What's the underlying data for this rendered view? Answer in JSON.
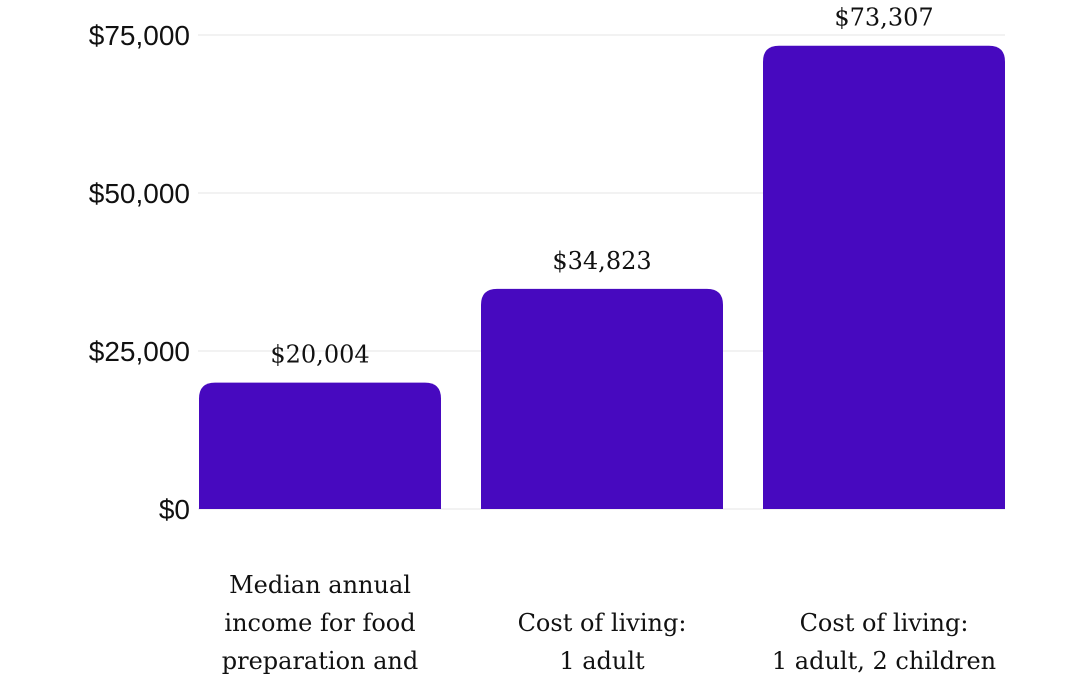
{
  "chart_data": {
    "type": "bar",
    "title": "",
    "xlabel": "",
    "ylabel": "",
    "ylim": [
      0,
      75000
    ],
    "yticks": [
      {
        "value": 0,
        "label": "$0"
      },
      {
        "value": 25000,
        "label": "$25,000"
      },
      {
        "value": 50000,
        "label": "$50,000"
      },
      {
        "value": 75000,
        "label": "$75,000"
      }
    ],
    "grid": true,
    "legend": "none",
    "bar_color": "#4709bf",
    "categories": [
      [
        "Median annual",
        "income for food",
        "preparation and"
      ],
      [
        "Cost of living:",
        "1 adult"
      ],
      [
        "Cost of living:",
        "1 adult, 2 children"
      ]
    ],
    "values": [
      20004,
      34823,
      73307
    ],
    "value_labels": [
      "$20,004",
      "$34,823",
      "$73,307"
    ]
  }
}
